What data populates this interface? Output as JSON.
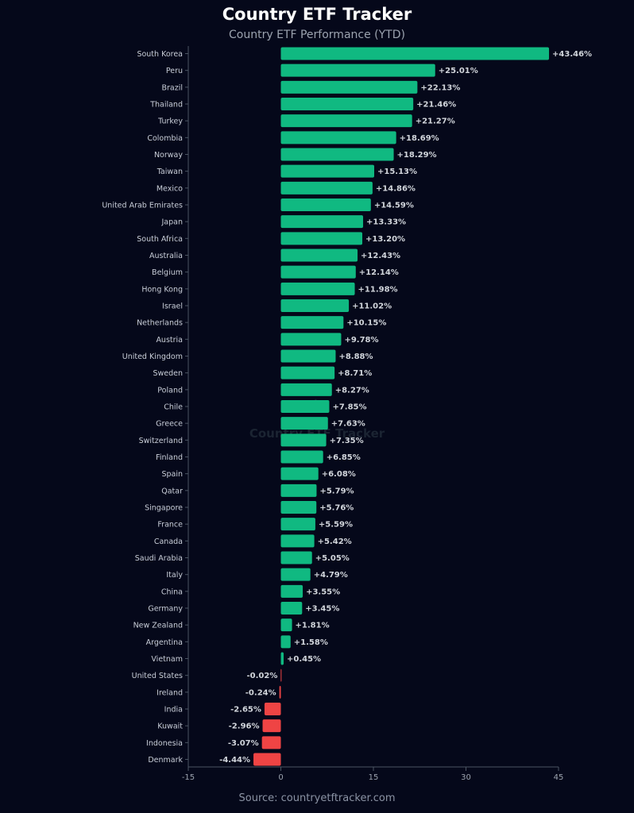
{
  "header": {
    "title": "Country ETF Tracker",
    "subtitle": "Country ETF Performance (YTD)"
  },
  "footer": {
    "source": "Source: countryetftracker.com"
  },
  "watermark": "Country ETF Tracker",
  "colors": {
    "background": "#05081a",
    "positive": "#10b981",
    "negative": "#ef4444",
    "axis": "#4b5563"
  },
  "chart_data": {
    "type": "bar",
    "orientation": "horizontal",
    "title": "Country ETF Tracker",
    "subtitle": "Country ETF Performance (YTD)",
    "xlabel": "",
    "ylabel": "",
    "xlim": [
      -15,
      45
    ],
    "xticks": [
      -15,
      0,
      15,
      30,
      45
    ],
    "grid": false,
    "categories": [
      "South Korea",
      "Peru",
      "Brazil",
      "Thailand",
      "Turkey",
      "Colombia",
      "Norway",
      "Taiwan",
      "Mexico",
      "United Arab Emirates",
      "Japan",
      "South Africa",
      "Australia",
      "Belgium",
      "Hong Kong",
      "Israel",
      "Netherlands",
      "Austria",
      "United Kingdom",
      "Sweden",
      "Poland",
      "Chile",
      "Greece",
      "Switzerland",
      "Finland",
      "Spain",
      "Qatar",
      "Singapore",
      "France",
      "Canada",
      "Saudi Arabia",
      "Italy",
      "China",
      "Germany",
      "New Zealand",
      "Argentina",
      "Vietnam",
      "United States",
      "Ireland",
      "India",
      "Kuwait",
      "Indonesia",
      "Denmark"
    ],
    "values": [
      43.46,
      25.01,
      22.13,
      21.46,
      21.27,
      18.69,
      18.29,
      15.13,
      14.86,
      14.59,
      13.33,
      13.2,
      12.43,
      12.14,
      11.98,
      11.02,
      10.15,
      9.78,
      8.88,
      8.71,
      8.27,
      7.85,
      7.63,
      7.35,
      6.85,
      6.08,
      5.79,
      5.76,
      5.59,
      5.42,
      5.05,
      4.79,
      3.55,
      3.45,
      1.81,
      1.58,
      0.45,
      -0.02,
      -0.24,
      -2.65,
      -2.96,
      -3.07,
      -4.44
    ],
    "value_labels": [
      "+43.46%",
      "+25.01%",
      "+22.13%",
      "+21.46%",
      "+21.27%",
      "+18.69%",
      "+18.29%",
      "+15.13%",
      "+14.86%",
      "+14.59%",
      "+13.33%",
      "+13.20%",
      "+12.43%",
      "+12.14%",
      "+11.98%",
      "+11.02%",
      "+10.15%",
      "+9.78%",
      "+8.88%",
      "+8.71%",
      "+8.27%",
      "+7.85%",
      "+7.63%",
      "+7.35%",
      "+6.85%",
      "+6.08%",
      "+5.79%",
      "+5.76%",
      "+5.59%",
      "+5.42%",
      "+5.05%",
      "+4.79%",
      "+3.55%",
      "+3.45%",
      "+1.81%",
      "+1.58%",
      "+0.45%",
      "-0.02%",
      "-0.24%",
      "-2.65%",
      "-2.96%",
      "-3.07%",
      "-4.44%"
    ]
  }
}
